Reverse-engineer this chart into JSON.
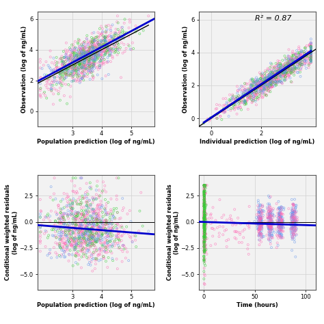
{
  "n_points": 1200,
  "colors": [
    "#FF69B4",
    "#32CD32",
    "#6495ED"
  ],
  "pink": "#FF69B4",
  "green": "#32CD32",
  "blue_dot": "#6495ED",
  "bg_color": "#ffffff",
  "grid_color": "#d0d0d0",
  "line_blue": "#0000CD",
  "line_black": "#000000",
  "r2_text": "R² = 0.87",
  "panel_top_left": {
    "xlabel": "Population prediction (log of ng/mL)",
    "ylabel": "Observation (log of ng/mL)",
    "xlim": [
      1.8,
      5.8
    ],
    "ylim": [
      -1.0,
      6.5
    ],
    "xticks": [
      3,
      4,
      5
    ],
    "yticks": [
      0,
      2,
      4,
      6
    ]
  },
  "panel_top_right": {
    "xlabel": "Individual prediction (log of ng/mL)",
    "ylabel": "Observation (log of ng/mL)",
    "xlim": [
      -0.5,
      4.2
    ],
    "ylim": [
      -0.5,
      6.5
    ],
    "xticks": [
      0,
      2
    ],
    "yticks": [
      0,
      2,
      4,
      6
    ]
  },
  "panel_bottom_left": {
    "xlabel": "Population prediction (log of ng/mL)",
    "ylabel": "Conditional weighted residuals\n(log of ng/mL)",
    "xlim": [
      1.8,
      5.8
    ],
    "ylim": [
      -6.5,
      4.5
    ],
    "xticks": [
      3,
      4,
      5
    ],
    "yticks": [
      -5.0,
      -2.5,
      0.0,
      2.5
    ]
  },
  "panel_bottom_right": {
    "xlabel": "Time (hours)",
    "ylabel": "Conditional weighted residuals\n(log of ng/mL)",
    "xlim": [
      -5,
      110
    ],
    "ylim": [
      -6.5,
      4.5
    ],
    "xticks": [
      0,
      50,
      100
    ],
    "yticks": [
      -5.0,
      -2.5,
      0.0,
      2.5
    ]
  }
}
